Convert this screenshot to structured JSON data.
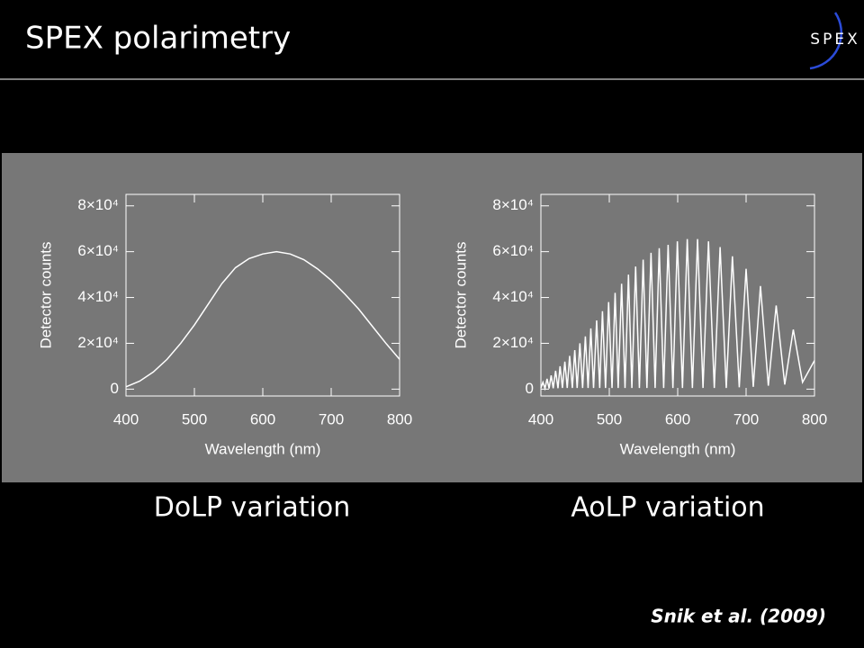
{
  "slide": {
    "title": "SPEX polarimetry",
    "logo": "SPEX",
    "citation": "Snik et al. (2009)"
  },
  "chart_data": [
    {
      "type": "line",
      "caption": "DoLP variation",
      "xlabel": "Wavelength (nm)",
      "ylabel": "Detector counts",
      "x": [
        400,
        420,
        440,
        460,
        480,
        500,
        520,
        540,
        560,
        580,
        600,
        620,
        640,
        660,
        680,
        700,
        720,
        740,
        760,
        780,
        800
      ],
      "series": [
        {
          "color": "#ffffff",
          "values": [
            1000,
            3500,
            7500,
            13000,
            20000,
            28000,
            37000,
            46000,
            53000,
            57000,
            59000,
            60000,
            59000,
            56500,
            52500,
            47500,
            41500,
            35000,
            27500,
            20000,
            13000
          ]
        }
      ],
      "xlim": [
        400,
        800
      ],
      "ylim": [
        -3000,
        85000
      ],
      "xticks": [
        400,
        500,
        600,
        700,
        800
      ],
      "yticks": [
        0,
        {
          "value": 20000,
          "label": "2×10⁴"
        },
        {
          "value": 40000,
          "label": "4×10⁴"
        },
        {
          "value": 60000,
          "label": "6×10⁴"
        },
        {
          "value": 80000,
          "label": "8×10⁴"
        }
      ]
    },
    {
      "type": "line",
      "caption": "AoLP variation",
      "xlabel": "Wavelength (nm)",
      "ylabel": "Detector counts",
      "x": [
        400,
        403,
        406,
        409,
        412,
        415,
        418,
        421.5,
        425,
        428,
        431.5,
        435,
        438.5,
        442,
        446,
        449.5,
        453,
        457,
        461,
        465,
        469,
        473,
        477,
        481.5,
        486,
        490,
        494.5,
        499,
        504,
        508.5,
        513,
        518,
        523,
        528,
        533,
        538.5,
        544,
        549.5,
        555,
        561,
        567,
        573,
        579.5,
        586,
        593,
        599.5,
        607,
        614,
        621.5,
        629,
        637,
        645,
        653.5,
        662,
        671,
        680,
        690,
        700,
        710.5,
        721,
        732.5,
        744,
        756.5,
        769,
        782.5,
        800
      ],
      "series": [
        {
          "color": "#ffffff",
          "values": [
            500,
            3000,
            300,
            4500,
            300,
            6000,
            400,
            8000,
            400,
            10000,
            500,
            12000,
            500,
            14500,
            500,
            17000,
            500,
            20000,
            500,
            23000,
            500,
            26500,
            500,
            30000,
            500,
            34000,
            500,
            38000,
            500,
            42000,
            500,
            46000,
            500,
            50000,
            500,
            53500,
            500,
            56500,
            500,
            59500,
            500,
            61500,
            500,
            63000,
            500,
            64500,
            500,
            65500,
            500,
            65500,
            500,
            64500,
            500,
            62000,
            500,
            58000,
            800,
            52500,
            1000,
            45000,
            1500,
            36500,
            2000,
            26000,
            3000,
            12500
          ]
        }
      ],
      "xlim": [
        400,
        800
      ],
      "ylim": [
        -3000,
        85000
      ],
      "xticks": [
        400,
        500,
        600,
        700,
        800
      ],
      "yticks": [
        0,
        {
          "value": 20000,
          "label": "2×10⁴"
        },
        {
          "value": 40000,
          "label": "4×10⁴"
        },
        {
          "value": 60000,
          "label": "6×10⁴"
        },
        {
          "value": 80000,
          "label": "8×10⁴"
        }
      ]
    }
  ]
}
